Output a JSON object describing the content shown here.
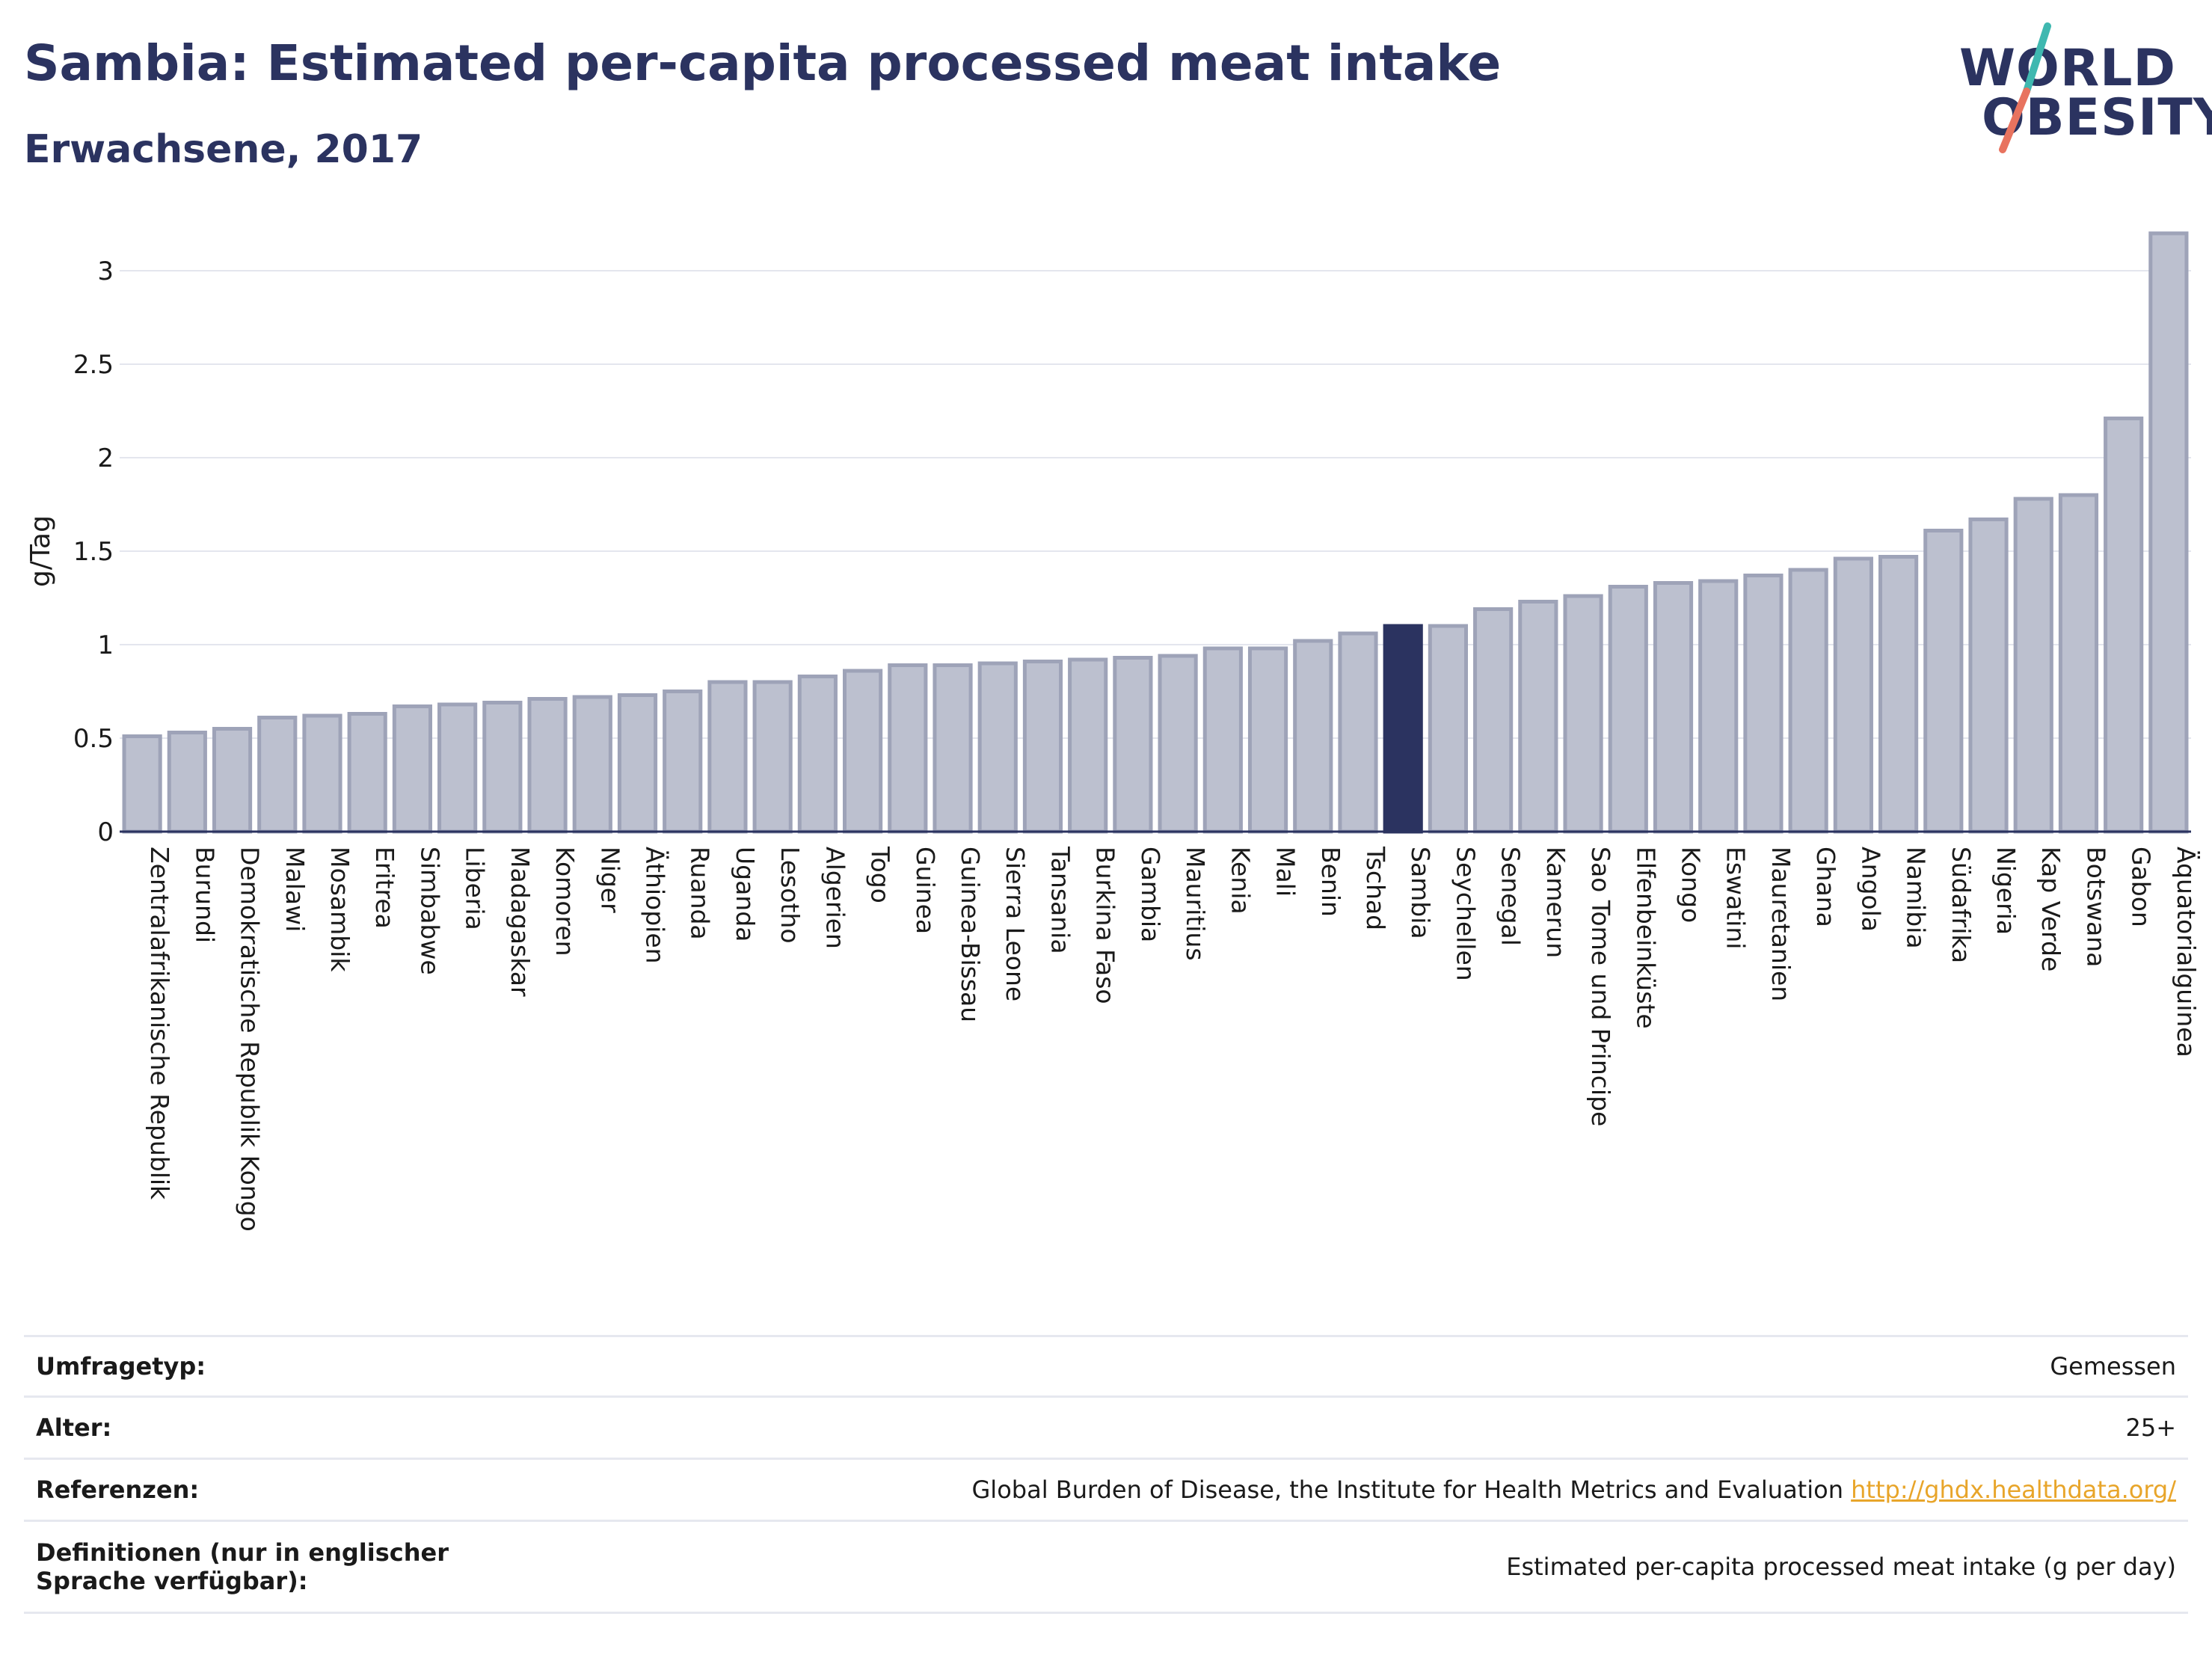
{
  "header": {
    "title": "Sambia: Estimated per-capita processed meat intake",
    "subtitle": "Erwachsene, 2017"
  },
  "logo": {
    "line1": "WORLD",
    "line2": "OBESITY",
    "accent_teal": "#3fb8b0",
    "accent_coral": "#e8735f"
  },
  "chart_data": {
    "type": "bar",
    "ylabel": "g/Tag",
    "ylim": [
      0,
      3.3
    ],
    "yticks": [
      0,
      0.5,
      1,
      1.5,
      2,
      2.5,
      3
    ],
    "grid": true,
    "highlight": "Sambia",
    "colors": {
      "bar": "#bcc0cf",
      "bar_edge": "#9ea3b8",
      "highlight": "#2b3360"
    },
    "categories": [
      "Zentralafrikanische Republik",
      "Burundi",
      "Demokratische Republik Kongo",
      "Malawi",
      "Mosambik",
      "Eritrea",
      "Simbabwe",
      "Liberia",
      "Madagaskar",
      "Komoren",
      "Niger",
      "Äthiopien",
      "Ruanda",
      "Uganda",
      "Lesotho",
      "Algerien",
      "Togo",
      "Guinea",
      "Guinea-Bissau",
      "Sierra Leone",
      "Tansania",
      "Burkina Faso",
      "Gambia",
      "Mauritius",
      "Kenia",
      "Mali",
      "Benin",
      "Tschad",
      "Sambia",
      "Seychellen",
      "Senegal",
      "Kamerun",
      "Sao Tome und Principe",
      "Elfenbeinküste",
      "Kongo",
      "Eswatini",
      "Mauretanien",
      "Ghana",
      "Angola",
      "Namibia",
      "Südafrika",
      "Nigeria",
      "Kap Verde",
      "Botswana",
      "Gabon",
      "Äquatorialguinea"
    ],
    "values": [
      0.51,
      0.53,
      0.55,
      0.61,
      0.62,
      0.63,
      0.67,
      0.68,
      0.69,
      0.71,
      0.72,
      0.73,
      0.75,
      0.8,
      0.8,
      0.83,
      0.86,
      0.89,
      0.89,
      0.9,
      0.91,
      0.92,
      0.93,
      0.94,
      0.98,
      0.98,
      1.02,
      1.06,
      1.1,
      1.1,
      1.19,
      1.23,
      1.26,
      1.31,
      1.33,
      1.34,
      1.37,
      1.4,
      1.46,
      1.47,
      1.61,
      1.67,
      1.78,
      1.8,
      2.21,
      3.2
    ]
  },
  "meta": {
    "survey_label": "Umfragetyp:",
    "survey_value": "Gemessen",
    "age_label": "Alter:",
    "age_value": "25+",
    "ref_label": "Referenzen:",
    "ref_value": "Global Burden of Disease, the Institute for Health Metrics and Evaluation",
    "ref_link": "http://ghdx.healthdata.org/",
    "def_label": "Definitionen (nur in englischer Sprache verfügbar):",
    "def_value": "Estimated per-capita processed meat intake (g per day)"
  }
}
